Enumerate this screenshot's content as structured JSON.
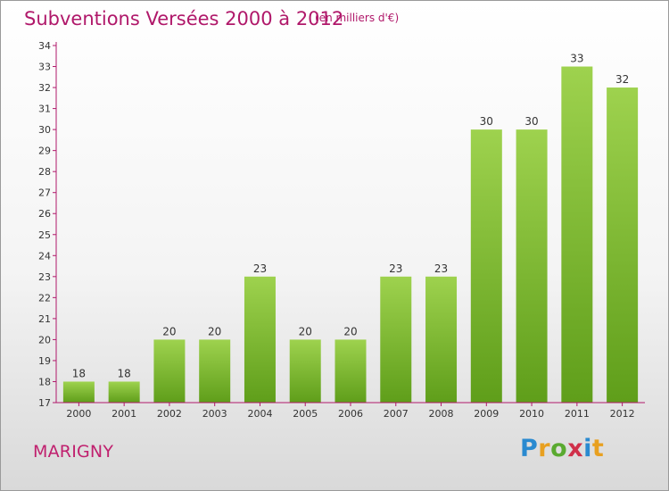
{
  "header": {
    "title": "Subventions Versées 2000 à 2012",
    "unit": "(en milliers d'€)"
  },
  "footer": {
    "commune": "MARIGNY",
    "logo_text": "Proxiti"
  },
  "colors": {
    "title": "#b0186a",
    "bar_top": "#9ed24e",
    "bar_bottom": "#5f9e1a",
    "axis": "#b0186a"
  },
  "chart_data": {
    "type": "bar",
    "title": "Subventions Versées 2000 à 2012",
    "xlabel": "",
    "ylabel": "",
    "categories": [
      "2000",
      "2001",
      "2002",
      "2003",
      "2004",
      "2005",
      "2006",
      "2007",
      "2008",
      "2009",
      "2010",
      "2011",
      "2012"
    ],
    "values": [
      18,
      18,
      20,
      20,
      23,
      20,
      20,
      23,
      23,
      30,
      30,
      33,
      32
    ],
    "ylim": [
      17,
      34
    ],
    "yticks": [
      17,
      18,
      19,
      20,
      21,
      22,
      23,
      24,
      25,
      26,
      27,
      28,
      29,
      30,
      31,
      32,
      33,
      34
    ],
    "grid": false,
    "legend": "none"
  }
}
